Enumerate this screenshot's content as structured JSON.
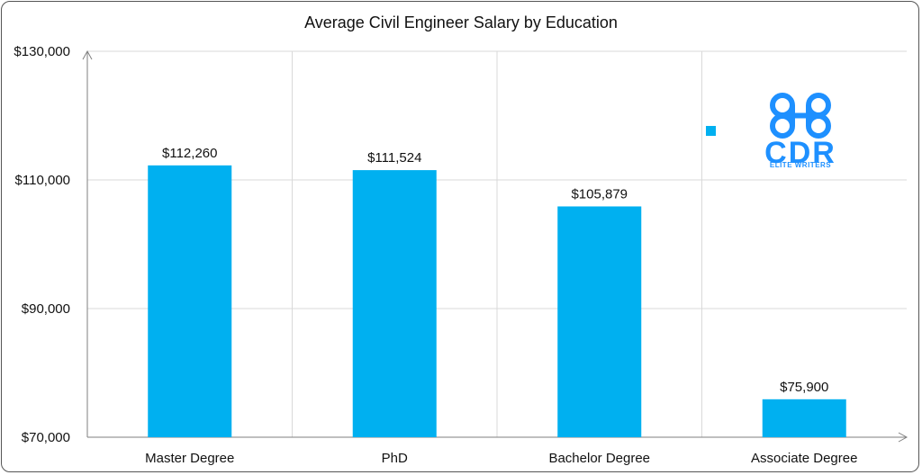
{
  "colors": {
    "bar": "#00b0f0",
    "grid": "#d9d9d9",
    "axis": "#7f7f7f",
    "logo": "#1e90ff"
  },
  "logo": {
    "main": "CDR",
    "sub": "ELITE WRITERS"
  },
  "chart_data": {
    "type": "bar",
    "title": "Average Civil Engineer Salary by Education",
    "xlabel": "",
    "ylabel": "",
    "categories": [
      "Master Degree",
      "PhD",
      "Bachelor Degree",
      "Associate Degree"
    ],
    "values": [
      112260,
      111524,
      105879,
      75900
    ],
    "value_labels": [
      "$112,260",
      "$111,524",
      "$105,879",
      "$75,900"
    ],
    "ylim": [
      70000,
      130000
    ],
    "yticks": [
      70000,
      90000,
      110000,
      130000
    ],
    "ytick_labels": [
      "$70,000",
      "$90,000",
      "$110,000",
      "$130,000"
    ],
    "grid": true,
    "legend": "none"
  }
}
